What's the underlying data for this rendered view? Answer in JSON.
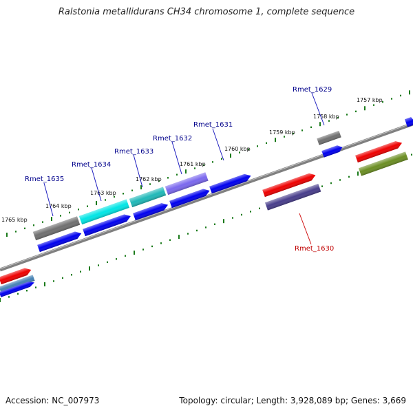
{
  "title": "Ralstonia metallidurans CH34 chromosome 1, complete sequence",
  "footer": {
    "accession": "Accession: NC_007973",
    "topology": "Topology: circular; Length: 3,928,089 bp; Genes: 3,669"
  },
  "colors": {
    "backbone": "#808080",
    "ticks": "#1a7a1a",
    "label_top": "#00008b",
    "label_bottom": "#c00000"
  },
  "tick_labels": [
    "1765 kbp",
    "1764 kbp",
    "1763 kbp",
    "1762 kbp",
    "1761 kbp",
    "1760 kbp",
    "1759 kbp",
    "1758 kbp",
    "1757 kbp"
  ],
  "gene_labels": [
    "Rmet_1635",
    "Rmet_1634",
    "Rmet_1633",
    "Rmet_1632",
    "Rmet_1631",
    "Rmet_1629",
    "Rmet_1630"
  ],
  "features": [
    {
      "name": "feature-gray-upper-1",
      "color": "#707070"
    },
    {
      "name": "feature-cyan-upper",
      "color": "#00e5e5"
    },
    {
      "name": "feature-teal-upper",
      "color": "#20b8b8"
    },
    {
      "name": "feature-slateblue-upper",
      "color": "#7b68ee"
    },
    {
      "name": "feature-blue-upper-1",
      "color": "#0000ee"
    },
    {
      "name": "feature-blue-lower-1",
      "color": "#0000ee"
    },
    {
      "name": "feature-blue-lower-2",
      "color": "#0000ee"
    },
    {
      "name": "feature-blue-lower-3",
      "color": "#0000ee"
    },
    {
      "name": "feature-blue-lower-4",
      "color": "#0000ee"
    },
    {
      "name": "feature-gray-upper-2",
      "color": "#707070"
    },
    {
      "name": "feature-blue-right-small",
      "color": "#0000ee"
    },
    {
      "name": "feature-red-right",
      "color": "#ee0000"
    },
    {
      "name": "feature-olive-right",
      "color": "#6b8e23"
    },
    {
      "name": "feature-red-center",
      "color": "#ee0000"
    },
    {
      "name": "feature-darkslate-center",
      "color": "#483d8b"
    },
    {
      "name": "feature-red-left",
      "color": "#ee0000"
    },
    {
      "name": "feature-steelblue-left",
      "color": "#4682b4"
    },
    {
      "name": "feature-blue-left",
      "color": "#0000ee"
    },
    {
      "name": "feature-blue-edge",
      "color": "#0000ee"
    }
  ]
}
